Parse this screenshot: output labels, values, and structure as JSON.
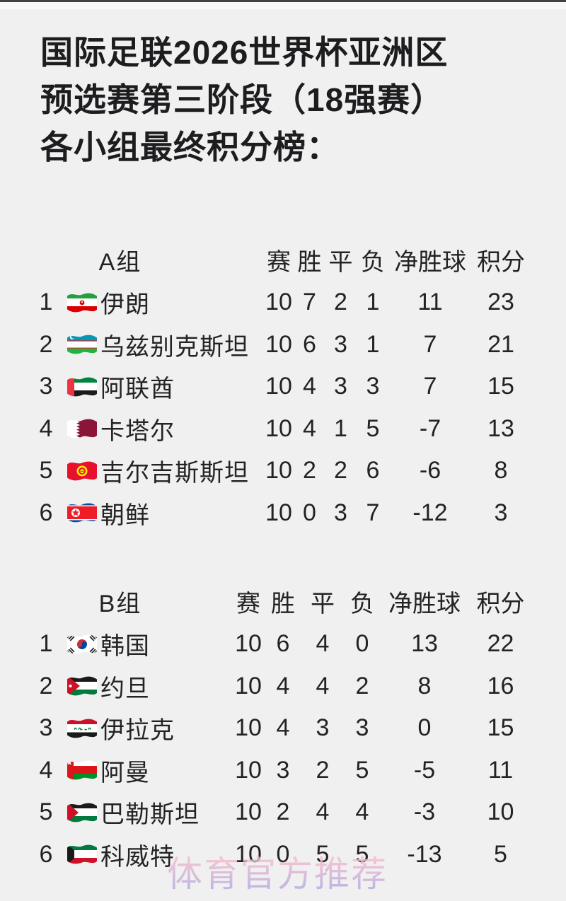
{
  "theme": {
    "background": "#f0f0f1",
    "text": "#232323",
    "title_text": "#1d1d1f",
    "top_line": "#414141",
    "top_strip": "#f8f8f9",
    "watermark_top": "#f5bccb",
    "watermark_bottom": "#b4a7e0"
  },
  "title": {
    "lines": [
      "国际足联2026世界杯亚洲区",
      "预选赛第三阶段（18强赛）",
      "各小组最终积分榜："
    ]
  },
  "columns": [
    "赛",
    "胜",
    "平",
    "负",
    "净胜球",
    "积分"
  ],
  "groups": [
    {
      "name": "A组",
      "rows": [
        {
          "rank": "1",
          "flag": "iran",
          "team": "伊朗",
          "played": "10",
          "won": "7",
          "drawn": "2",
          "lost": "1",
          "gd": "11",
          "pts": "23"
        },
        {
          "rank": "2",
          "flag": "uzbekistan",
          "team": "乌兹别克斯坦",
          "played": "10",
          "won": "6",
          "drawn": "3",
          "lost": "1",
          "gd": "7",
          "pts": "21"
        },
        {
          "rank": "3",
          "flag": "uae",
          "team": "阿联酋",
          "played": "10",
          "won": "4",
          "drawn": "3",
          "lost": "3",
          "gd": "7",
          "pts": "15"
        },
        {
          "rank": "4",
          "flag": "qatar",
          "team": "卡塔尔",
          "played": "10",
          "won": "4",
          "drawn": "1",
          "lost": "5",
          "gd": "-7",
          "pts": "13"
        },
        {
          "rank": "5",
          "flag": "kyrgyzstan",
          "team": "吉尔吉斯斯坦",
          "played": "10",
          "won": "2",
          "drawn": "2",
          "lost": "6",
          "gd": "-6",
          "pts": "8"
        },
        {
          "rank": "6",
          "flag": "north-korea",
          "team": "朝鲜",
          "played": "10",
          "won": "0",
          "drawn": "3",
          "lost": "7",
          "gd": "-12",
          "pts": "3"
        }
      ]
    },
    {
      "name": "B组",
      "rows": [
        {
          "rank": "1",
          "flag": "south-korea",
          "team": "韩国",
          "played": "10",
          "won": "6",
          "drawn": "4",
          "lost": "0",
          "gd": "13",
          "pts": "22"
        },
        {
          "rank": "2",
          "flag": "jordan",
          "team": "约旦",
          "played": "10",
          "won": "4",
          "drawn": "4",
          "lost": "2",
          "gd": "8",
          "pts": "16"
        },
        {
          "rank": "3",
          "flag": "iraq",
          "team": "伊拉克",
          "played": "10",
          "won": "4",
          "drawn": "3",
          "lost": "3",
          "gd": "0",
          "pts": "15"
        },
        {
          "rank": "4",
          "flag": "oman",
          "team": "阿曼",
          "played": "10",
          "won": "3",
          "drawn": "2",
          "lost": "5",
          "gd": "-5",
          "pts": "11"
        },
        {
          "rank": "5",
          "flag": "palestine",
          "team": "巴勒斯坦",
          "played": "10",
          "won": "2",
          "drawn": "4",
          "lost": "4",
          "gd": "-3",
          "pts": "10"
        },
        {
          "rank": "6",
          "flag": "kuwait",
          "team": "科威特",
          "played": "10",
          "won": "0",
          "drawn": "5",
          "lost": "5",
          "gd": "-13",
          "pts": "5"
        }
      ]
    }
  ],
  "watermark": {
    "text": "体育官方推荐"
  }
}
